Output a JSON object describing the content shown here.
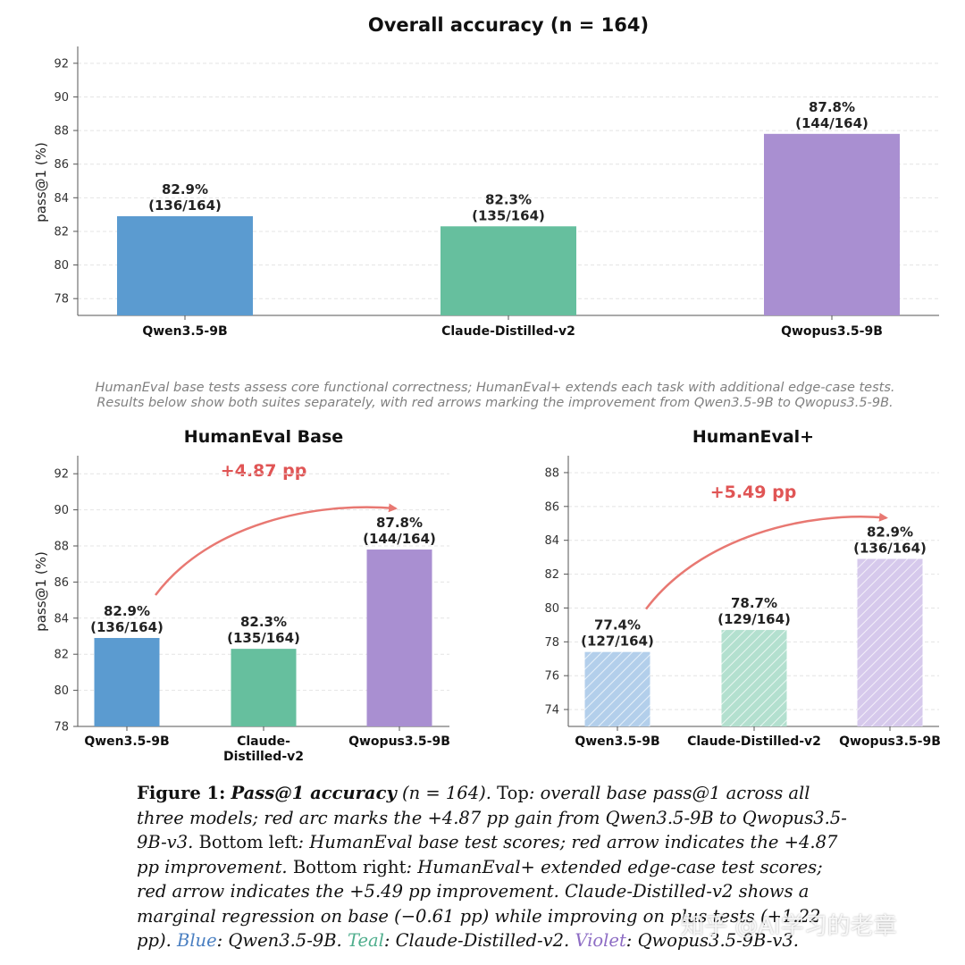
{
  "chart_data": [
    {
      "type": "bar",
      "title": "Overall accuracy (n = 164)",
      "ylabel": "pass@1 (%)",
      "ylim": [
        77,
        93
      ],
      "yticks": [
        78,
        80,
        82,
        84,
        86,
        88,
        90,
        92
      ],
      "grid": true,
      "categories": [
        "Qwen3.5-9B",
        "Claude-Distilled-v2",
        "Qwopus3.5-9B"
      ],
      "values": [
        82.9,
        82.3,
        87.8
      ],
      "labels": [
        {
          "pct": "82.9%",
          "frac": "(136/164)"
        },
        {
          "pct": "82.3%",
          "frac": "(135/164)"
        },
        {
          "pct": "87.8%",
          "frac": "(144/164)"
        }
      ],
      "colors": [
        "#5b9bd0",
        "#66bf9e",
        "#a98fd1"
      ],
      "hatched": false
    },
    {
      "type": "bar",
      "title": "HumanEval Base",
      "ylabel": "pass@1 (%)",
      "ylim": [
        78,
        93
      ],
      "yticks": [
        78,
        80,
        82,
        84,
        86,
        88,
        90,
        92
      ],
      "grid": true,
      "categories": [
        "Qwen3.5-9B",
        "Claude-\nDistilled-v2",
        "Qwopus3.5-9B"
      ],
      "values": [
        82.9,
        82.3,
        87.8
      ],
      "labels": [
        {
          "pct": "82.9%",
          "frac": "(136/164)"
        },
        {
          "pct": "82.3%",
          "frac": "(135/164)"
        },
        {
          "pct": "87.8%",
          "frac": "(144/164)"
        }
      ],
      "colors": [
        "#5b9bd0",
        "#66bf9e",
        "#a98fd1"
      ],
      "hatched": false,
      "annotation": {
        "text": "+4.87 pp",
        "arrow_from": 0,
        "arrow_to": 2,
        "color": "#e87872"
      }
    },
    {
      "type": "bar",
      "title": "HumanEval+",
      "ylabel": "",
      "ylim": [
        73,
        89
      ],
      "yticks": [
        74,
        76,
        78,
        80,
        82,
        84,
        86,
        88
      ],
      "grid": true,
      "categories": [
        "Qwen3.5-9B",
        "Claude-Distilled-v2",
        "Qwopus3.5-9B"
      ],
      "values": [
        77.4,
        78.7,
        82.9
      ],
      "labels": [
        {
          "pct": "77.4%",
          "frac": "(127/164)"
        },
        {
          "pct": "78.7%",
          "frac": "(129/164)"
        },
        {
          "pct": "82.9%",
          "frac": "(136/164)"
        }
      ],
      "colors": [
        "#b3cfeb",
        "#b3e0cf",
        "#d6c9ec"
      ],
      "hatched": true,
      "annotation": {
        "text": "+5.49 pp",
        "arrow_from": 0,
        "arrow_to": 2,
        "color": "#e87872"
      }
    }
  ],
  "note": {
    "line1": "HumanEval base tests assess core functional correctness; HumanEval+ extends each task with additional edge-case tests.",
    "line2": "Results below show both suites separately, with red arrows marking the improvement from Qwen3.5-9B to Qwopus3.5-9B."
  },
  "caption": {
    "label": "Figure 1:",
    "heading": "Pass@1 accuracy",
    "n": "(n = 164).",
    "top_word": "Top",
    "top_text": ": overall base pass@1 across all three models; red arc marks the +4.87 pp gain from Qwen3.5-9B to Qwopus3.5-9B-v3.",
    "bl_word": "Bottom left",
    "bl_text": ": HumanEval base test scores; red arrow indicates the +4.87 pp improvement.",
    "br_word": "Bottom right",
    "br_text": ": HumanEval+ extended edge-case test scores; red arrow indicates the +5.49 pp improvement. Claude-Distilled-v2 shows a marginal regression on base (−0.61 pp) while improving on plus tests (+1.22 pp).",
    "blue": "Blue",
    "blue_text": ": Qwen3.5-9B.",
    "teal": "Teal",
    "teal_text": ": Claude-Distilled-v2.",
    "violet": "Violet",
    "violet_text": ": Qwopus3.5-9B-v3."
  },
  "watermark": "知乎 @AI学习的老章"
}
